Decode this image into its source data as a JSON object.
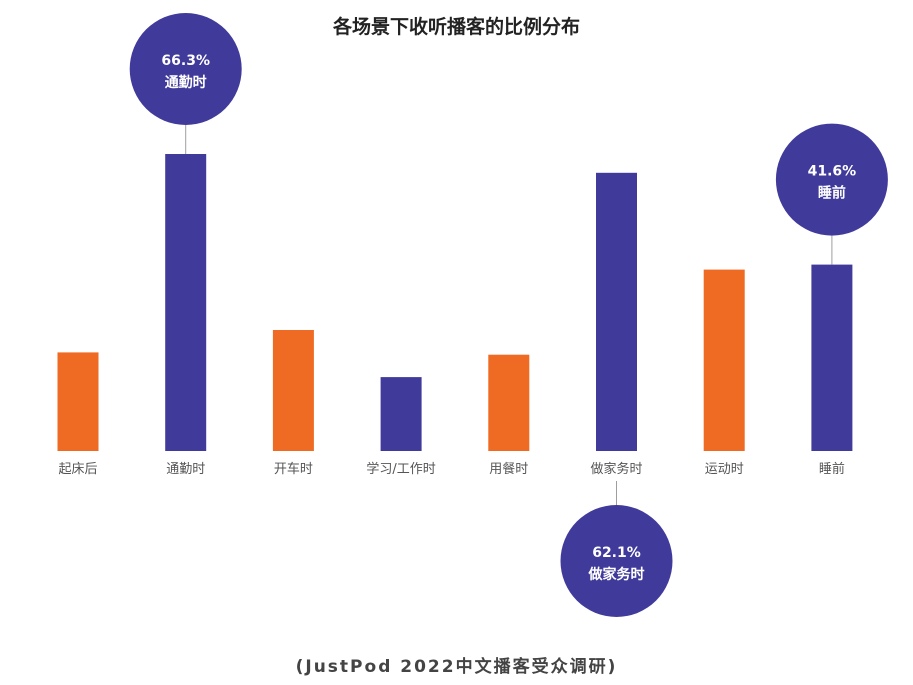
{
  "colors": {
    "purple": "#403b9b",
    "orange": "#ef6a22",
    "label": "#555555",
    "callout_text": "#ffffff",
    "leader": "#9e9e9e"
  },
  "chart_data": {
    "type": "bar",
    "title": "各场景下收听播客的比例分布",
    "source": "(JustPod 2022中文播客受众调研)",
    "categories": [
      "起床后",
      "通勤时",
      "开车时",
      "学习/工作时",
      "用餐时",
      "做家务时",
      "运动时",
      "睡前"
    ],
    "values": [
      22.0,
      66.3,
      27.0,
      16.5,
      21.5,
      62.1,
      40.5,
      41.6
    ],
    "bar_colors": [
      "orange",
      "purple",
      "orange",
      "purple",
      "orange",
      "purple",
      "orange",
      "purple"
    ],
    "ylim": [
      0,
      75
    ],
    "grid": false,
    "legend": "none",
    "callouts": [
      {
        "category": "通勤时",
        "value_label": "66.3%",
        "text": "通勤时",
        "position": "above"
      },
      {
        "category": "做家务时",
        "value_label": "62.1%",
        "text": "做家务时",
        "position": "below"
      },
      {
        "category": "睡前",
        "value_label": "41.6%",
        "text": "睡前",
        "position": "above"
      }
    ]
  }
}
